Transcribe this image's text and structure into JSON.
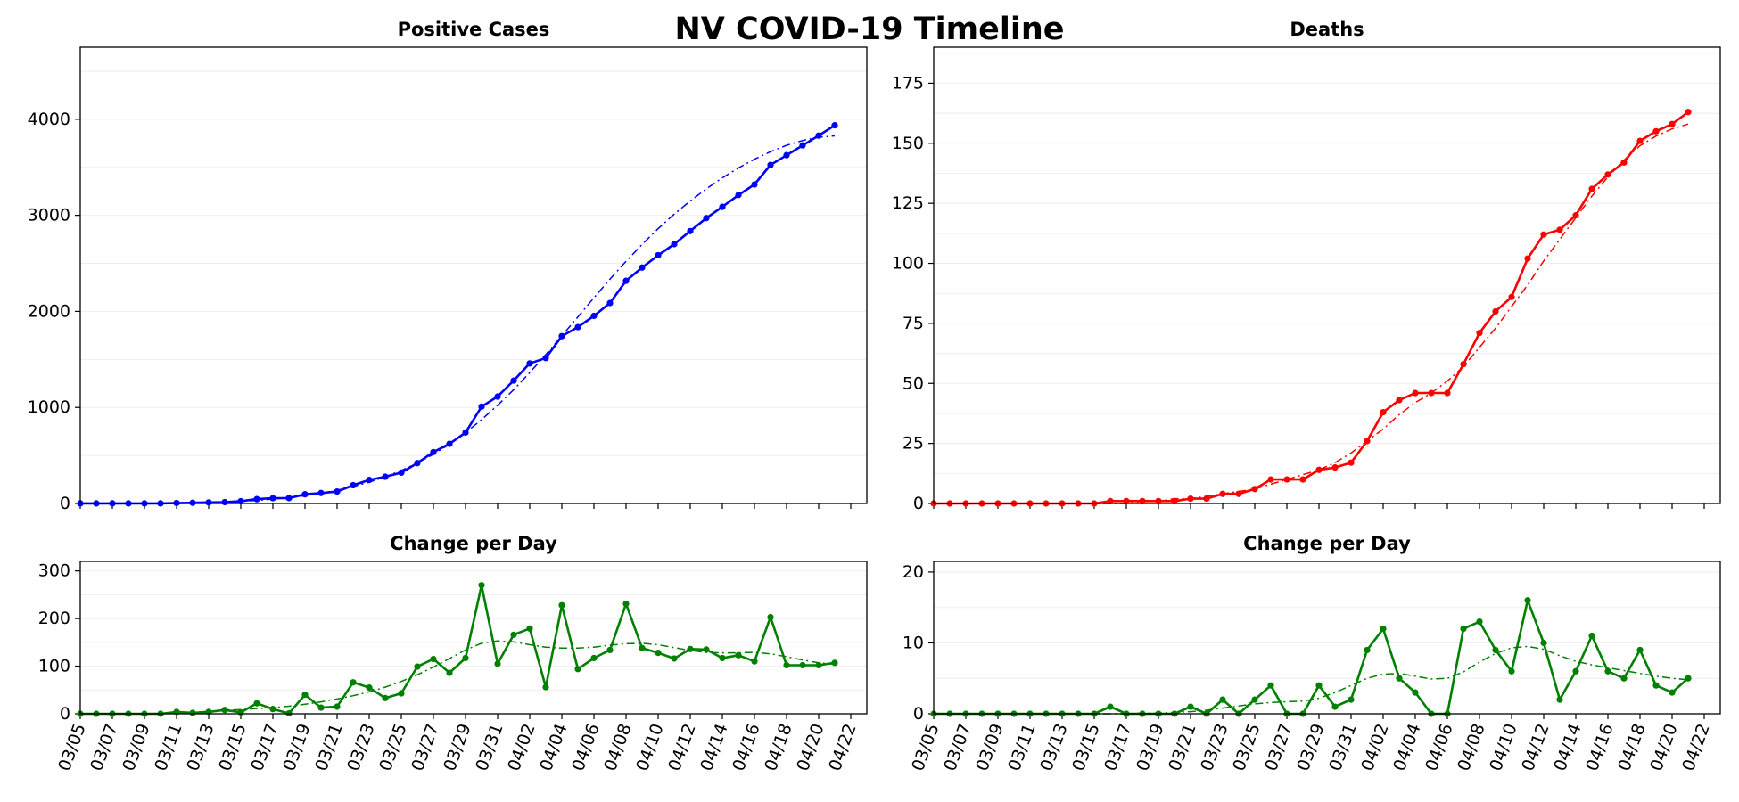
{
  "figure": {
    "title": "NV COVID-19 Timeline"
  },
  "colors": {
    "cases": "#0000ff",
    "deaths": "#ff0000",
    "change": "#008000",
    "grid": "#eeeeee",
    "axis": "#000000"
  },
  "chart_data": [
    {
      "id": "cases",
      "type": "line",
      "title": "Positive Cases",
      "xlabel": "",
      "ylabel": "",
      "x": [
        "03/05",
        "03/06",
        "03/07",
        "03/08",
        "03/09",
        "03/10",
        "03/11",
        "03/12",
        "03/13",
        "03/14",
        "03/15",
        "03/16",
        "03/17",
        "03/18",
        "03/19",
        "03/20",
        "03/21",
        "03/22",
        "03/23",
        "03/24",
        "03/25",
        "03/26",
        "03/27",
        "03/28",
        "03/29",
        "03/30",
        "03/31",
        "04/01",
        "04/02",
        "04/03",
        "04/04",
        "04/05",
        "04/06",
        "04/07",
        "04/08",
        "04/09",
        "04/10",
        "04/11",
        "04/12",
        "04/13",
        "04/14",
        "04/15",
        "04/16",
        "04/17",
        "04/18",
        "04/19",
        "04/20",
        "04/21"
      ],
      "xlim": [
        "03/05",
        "04/23"
      ],
      "xticks": [
        "03/05",
        "03/07",
        "03/09",
        "03/11",
        "03/13",
        "03/15",
        "03/17",
        "03/19",
        "03/21",
        "03/23",
        "03/25",
        "03/27",
        "03/29",
        "03/31",
        "04/02",
        "04/04",
        "04/06",
        "04/08",
        "04/10",
        "04/12",
        "04/14",
        "04/16",
        "04/18",
        "04/20",
        "04/22"
      ],
      "ylim": [
        0,
        4750
      ],
      "yticks": [
        0,
        1000,
        2000,
        3000,
        4000
      ],
      "grid": true,
      "series": [
        {
          "style": "solid-markers",
          "values": [
            1,
            1,
            1,
            1,
            1,
            1,
            5,
            7,
            11,
            14,
            24,
            45,
            55,
            56,
            96,
            109,
            124,
            190,
            245,
            278,
            321,
            420,
            535,
            621,
            738,
            1008,
            1113,
            1279,
            1458,
            1514,
            1742,
            1836,
            1953,
            2087,
            2318,
            2456,
            2584,
            2700,
            2836,
            2971,
            3088,
            3211,
            3321,
            3524,
            3626,
            3728,
            3830,
            3937
          ]
        },
        {
          "style": "dashdot-trend",
          "values": [
            0,
            0,
            0,
            0,
            1,
            2,
            4,
            6,
            10,
            15,
            22,
            32,
            46,
            62,
            82,
            107,
            138,
            176,
            222,
            277,
            343,
            421,
            512,
            617,
            737,
            872,
            1022,
            1185,
            1362,
            1550,
            1745,
            1943,
            2141,
            2335,
            2521,
            2697,
            2861,
            3012,
            3150,
            3276,
            3390,
            3493,
            3584,
            3663,
            3729,
            3779,
            3812,
            3827
          ]
        }
      ]
    },
    {
      "id": "deaths",
      "type": "line",
      "title": "Deaths",
      "xlabel": "",
      "ylabel": "",
      "x": [
        "03/05",
        "03/06",
        "03/07",
        "03/08",
        "03/09",
        "03/10",
        "03/11",
        "03/12",
        "03/13",
        "03/14",
        "03/15",
        "03/16",
        "03/17",
        "03/18",
        "03/19",
        "03/20",
        "03/21",
        "03/22",
        "03/23",
        "03/24",
        "03/25",
        "03/26",
        "03/27",
        "03/28",
        "03/29",
        "03/30",
        "03/31",
        "04/01",
        "04/02",
        "04/03",
        "04/04",
        "04/05",
        "04/06",
        "04/07",
        "04/08",
        "04/09",
        "04/10",
        "04/11",
        "04/12",
        "04/13",
        "04/14",
        "04/15",
        "04/16",
        "04/17",
        "04/18",
        "04/19",
        "04/20",
        "04/21"
      ],
      "xlim": [
        "03/05",
        "04/23"
      ],
      "xticks": [
        "03/05",
        "03/07",
        "03/09",
        "03/11",
        "03/13",
        "03/15",
        "03/17",
        "03/19",
        "03/21",
        "03/23",
        "03/25",
        "03/27",
        "03/29",
        "03/31",
        "04/02",
        "04/04",
        "04/06",
        "04/08",
        "04/10",
        "04/12",
        "04/14",
        "04/16",
        "04/18",
        "04/20",
        "04/22"
      ],
      "ylim": [
        0,
        190
      ],
      "yticks": [
        0,
        25,
        50,
        75,
        100,
        125,
        150,
        175
      ],
      "grid": true,
      "series": [
        {
          "style": "solid-markers",
          "values": [
            0,
            0,
            0,
            0,
            0,
            0,
            0,
            0,
            0,
            0,
            0,
            1,
            1,
            1,
            1,
            1,
            2,
            2,
            4,
            4,
            6,
            10,
            10,
            10,
            14,
            15,
            17,
            26,
            38,
            43,
            46,
            46,
            46,
            58,
            71,
            80,
            86,
            102,
            112,
            114,
            120,
            131,
            137,
            142,
            151,
            155,
            158,
            163
          ]
        },
        {
          "style": "dashdot-trend",
          "values": [
            0,
            0,
            0,
            0,
            0,
            0,
            0,
            0,
            0,
            0,
            0,
            0,
            0,
            1,
            1,
            2,
            2,
            3,
            4,
            5,
            6,
            8,
            10,
            12,
            14,
            17,
            21,
            26,
            31,
            37,
            42,
            46,
            51,
            57,
            65,
            73,
            82,
            91,
            101,
            110,
            119,
            128,
            136,
            143,
            149,
            153,
            156,
            158
          ]
        }
      ]
    },
    {
      "id": "cases-change",
      "type": "line",
      "title": "Change per Day",
      "xlabel": "",
      "ylabel": "",
      "x": [
        "03/05",
        "03/06",
        "03/07",
        "03/08",
        "03/09",
        "03/10",
        "03/11",
        "03/12",
        "03/13",
        "03/14",
        "03/15",
        "03/16",
        "03/17",
        "03/18",
        "03/19",
        "03/20",
        "03/21",
        "03/22",
        "03/23",
        "03/24",
        "03/25",
        "03/26",
        "03/27",
        "03/28",
        "03/29",
        "03/30",
        "03/31",
        "04/01",
        "04/02",
        "04/03",
        "04/04",
        "04/05",
        "04/06",
        "04/07",
        "04/08",
        "04/09",
        "04/10",
        "04/11",
        "04/12",
        "04/13",
        "04/14",
        "04/15",
        "04/16",
        "04/17",
        "04/18",
        "04/19",
        "04/20",
        "04/21"
      ],
      "xlim": [
        "03/05",
        "04/23"
      ],
      "xticks": [
        "03/05",
        "03/07",
        "03/09",
        "03/11",
        "03/13",
        "03/15",
        "03/17",
        "03/19",
        "03/21",
        "03/23",
        "03/25",
        "03/27",
        "03/29",
        "03/31",
        "04/02",
        "04/04",
        "04/06",
        "04/08",
        "04/10",
        "04/12",
        "04/14",
        "04/16",
        "04/18",
        "04/20",
        "04/22"
      ],
      "ylim": [
        0,
        320
      ],
      "yticks": [
        0,
        100,
        200,
        300
      ],
      "grid": true,
      "series": [
        {
          "style": "solid-markers",
          "values": [
            0,
            0,
            0,
            0,
            0,
            0,
            4,
            2,
            4,
            8,
            3,
            22,
            10,
            1,
            40,
            13,
            15,
            66,
            55,
            33,
            43,
            99,
            115,
            86,
            117,
            270,
            105,
            166,
            179,
            56,
            228,
            94,
            117,
            134,
            231,
            138,
            128,
            116,
            136,
            135,
            117,
            123,
            110,
            203,
            102,
            102,
            102,
            107
          ]
        },
        {
          "style": "dashdot-trend",
          "values": [
            0,
            0,
            0,
            0,
            0,
            1,
            2,
            3,
            5,
            7,
            9,
            11,
            13,
            16,
            20,
            25,
            31,
            38,
            46,
            56,
            68,
            82,
            98,
            116,
            134,
            148,
            153,
            151,
            145,
            140,
            138,
            138,
            140,
            144,
            147,
            148,
            145,
            139,
            133,
            129,
            128,
            128,
            129,
            126,
            120,
            113,
            107,
            104
          ]
        }
      ]
    },
    {
      "id": "deaths-change",
      "type": "line",
      "title": "Change per Day",
      "xlabel": "",
      "ylabel": "",
      "x": [
        "03/05",
        "03/06",
        "03/07",
        "03/08",
        "03/09",
        "03/10",
        "03/11",
        "03/12",
        "03/13",
        "03/14",
        "03/15",
        "03/16",
        "03/17",
        "03/18",
        "03/19",
        "03/20",
        "03/21",
        "03/22",
        "03/23",
        "03/24",
        "03/25",
        "03/26",
        "03/27",
        "03/28",
        "03/29",
        "03/30",
        "03/31",
        "04/01",
        "04/02",
        "04/03",
        "04/04",
        "04/05",
        "04/06",
        "04/07",
        "04/08",
        "04/09",
        "04/10",
        "04/11",
        "04/12",
        "04/13",
        "04/14",
        "04/15",
        "04/16",
        "04/17",
        "04/18",
        "04/19",
        "04/20",
        "04/21"
      ],
      "xlim": [
        "03/05",
        "04/23"
      ],
      "xticks": [
        "03/05",
        "03/07",
        "03/09",
        "03/11",
        "03/13",
        "03/15",
        "03/17",
        "03/19",
        "03/21",
        "03/23",
        "03/25",
        "03/27",
        "03/29",
        "03/31",
        "04/02",
        "04/04",
        "04/06",
        "04/08",
        "04/10",
        "04/12",
        "04/14",
        "04/16",
        "04/18",
        "04/20",
        "04/22"
      ],
      "ylim": [
        0,
        21.5
      ],
      "yticks": [
        0,
        10,
        20
      ],
      "grid": true,
      "series": [
        {
          "style": "solid-markers",
          "values": [
            0,
            0,
            0,
            0,
            0,
            0,
            0,
            0,
            0,
            0,
            0,
            1,
            0,
            0,
            0,
            0,
            1,
            0,
            2,
            0,
            2,
            4,
            0,
            0,
            4,
            1,
            2,
            9,
            12,
            5,
            3,
            0,
            0,
            12,
            13,
            9,
            6,
            16,
            10,
            2,
            6,
            11,
            6,
            5,
            9,
            4,
            3,
            5
          ]
        },
        {
          "style": "dashdot-trend",
          "values": [
            0,
            0,
            0,
            0,
            0,
            0,
            0,
            0,
            0,
            0,
            0,
            0,
            0,
            0.1,
            0.1,
            0.2,
            0.3,
            0.5,
            0.8,
            1.1,
            1.4,
            1.6,
            1.7,
            1.8,
            2.2,
            3,
            4,
            5,
            5.6,
            5.7,
            5.3,
            4.9,
            5,
            5.9,
            7.3,
            8.5,
            9.3,
            9.5,
            9.1,
            8.2,
            7.4,
            6.9,
            6.5,
            6.1,
            5.7,
            5.3,
            5,
            4.8
          ]
        }
      ]
    }
  ]
}
